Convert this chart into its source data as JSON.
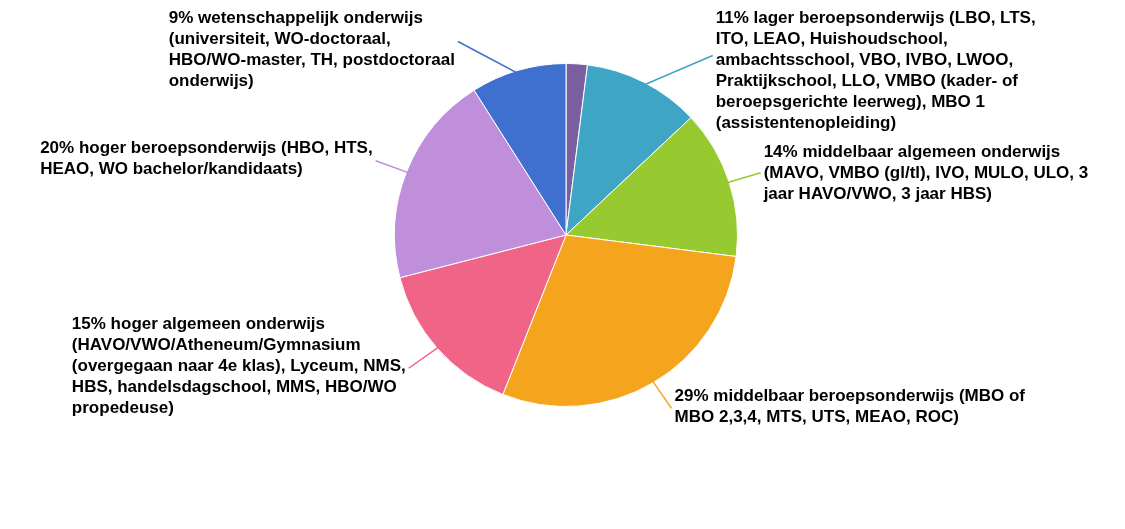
{
  "chart_data": {
    "type": "pie",
    "legend": false,
    "categories": [
      null,
      "11% lager beroepsonderwijs (LBO, LTS, ITO, LEAO, Huishoudschool, ambachtsschool, VBO, IVBO, LWOO, Praktijkschool, LLO, VMBO (kader- of beroepsgerichte leerweg), MBO 1 (assistentenopleiding)",
      "14% middelbaar algemeen onderwijs (MAVO, VMBO (gl/tl), IVO, MULO, ULO, 3 jaar HAVO/VWO, 3 jaar HBS)",
      "29% middelbaar beroepsonderwijs (MBO of MBO 2,3,4, MTS, UTS, MEAO, ROC)",
      "15% hoger algemeen onderwijs (HAVO/VWO/Atheneum/Gymnasium (overgegaan naar 4e klas), Lyceum, NMS, HBS, handelsdagschool, MMS, HBO/WO propedeuse)",
      "20% hoger beroepsonderwijs (HBO, HTS, HEAO, WO bachelor/kandidaats)",
      "9% wetenschappelijk onderwijs (universiteit, WO-doctoraal, HBO/WO-master, TH, postdoctoraal onderwijs)"
    ],
    "values": [
      2,
      11,
      14,
      29,
      15,
      20,
      9
    ],
    "colors": [
      "#7a5fa0",
      "#3fa5c4",
      "#97c930",
      "#f4a41d",
      "#ef6487",
      "#bf8fdb",
      "#3f6fcf"
    ]
  }
}
